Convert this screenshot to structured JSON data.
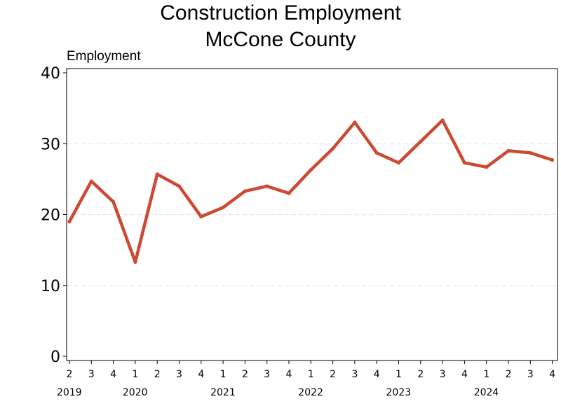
{
  "chart_data": {
    "type": "line",
    "title": [
      "Construction Employment",
      "McCone County"
    ],
    "ylabel": "Employment",
    "xlabel": "",
    "ylim": [
      0,
      40
    ],
    "yticks": [
      0,
      10,
      20,
      30,
      40
    ],
    "grid": "horizontal dashed",
    "quarters": [
      "2",
      "3",
      "4",
      "1",
      "2",
      "3",
      "4",
      "1",
      "2",
      "3",
      "4",
      "1",
      "2",
      "3",
      "4",
      "1",
      "2",
      "3",
      "4",
      "1",
      "2",
      "3",
      "4"
    ],
    "years": [
      {
        "label": "2019",
        "index": 0
      },
      {
        "label": "2020",
        "index": 3
      },
      {
        "label": "2021",
        "index": 7
      },
      {
        "label": "2022",
        "index": 11
      },
      {
        "label": "2023",
        "index": 15
      },
      {
        "label": "2024",
        "index": 19
      }
    ],
    "series": [
      {
        "color": "#cc4a32",
        "values": [
          19,
          24.7,
          21.8,
          13.3,
          25.7,
          24,
          19.7,
          21,
          23.3,
          24,
          23,
          26.3,
          29.3,
          33,
          28.7,
          27.3,
          30.3,
          33.3,
          27.3,
          26.7,
          29,
          28.7,
          27.7
        ]
      }
    ]
  }
}
